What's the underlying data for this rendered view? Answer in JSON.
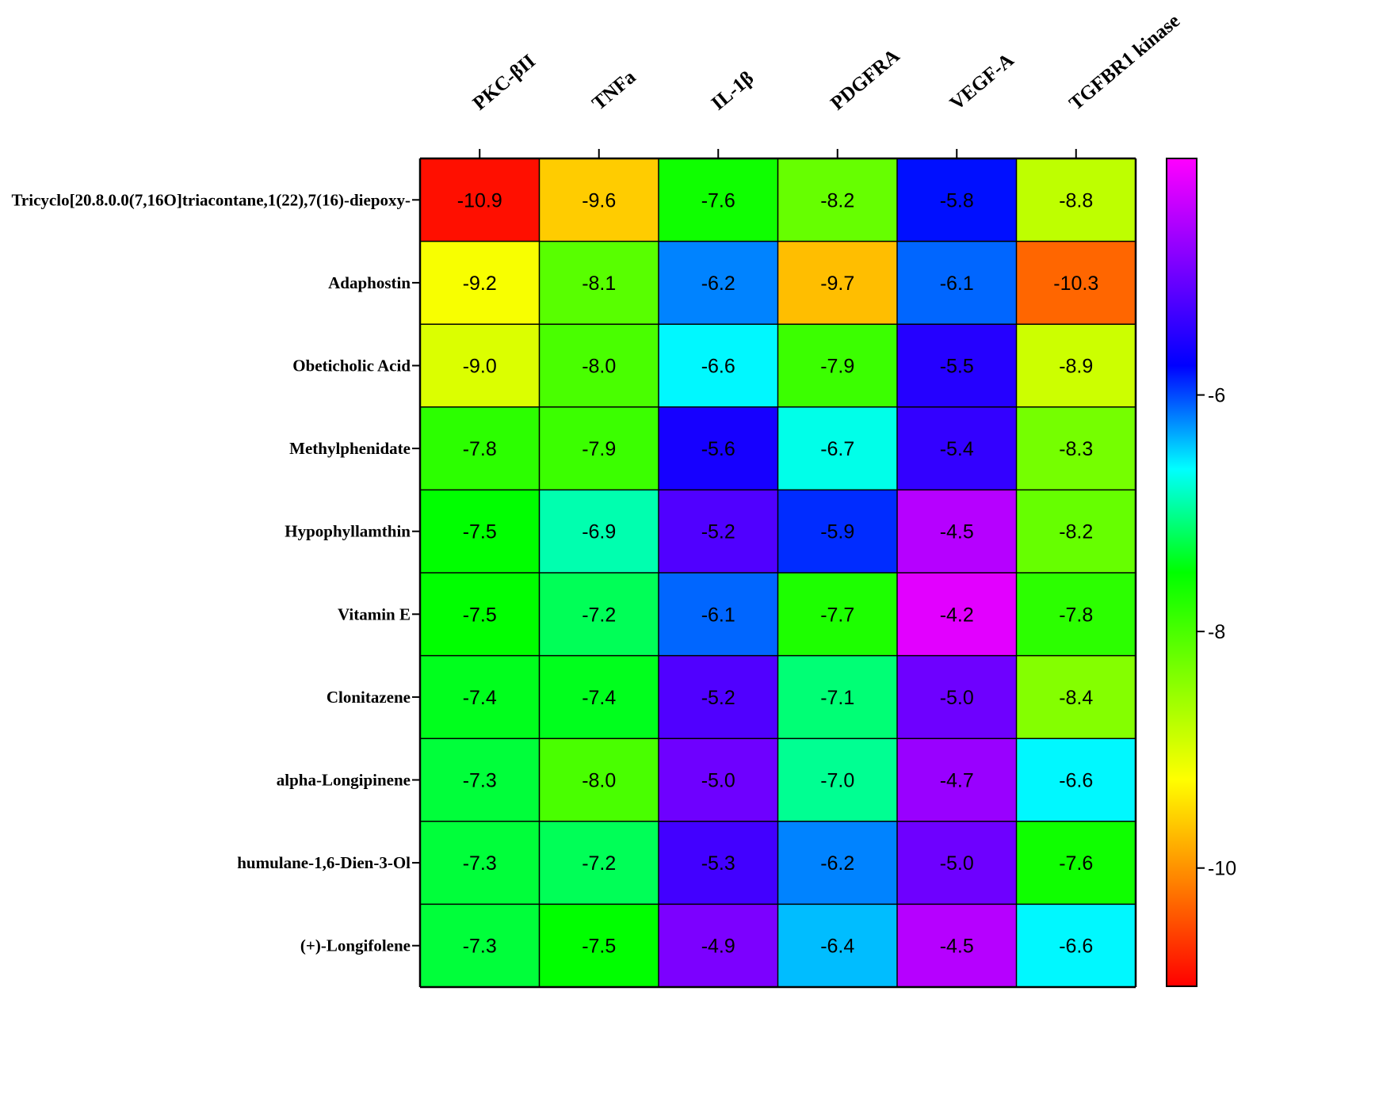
{
  "chart_data": {
    "type": "heatmap",
    "columns": [
      "PKC-βII",
      "TNFa",
      "IL-1β",
      "PDGFRA",
      "VEGF-A",
      "TGFBR1 kinase"
    ],
    "rows": [
      "Tricyclo[20.8.0.0(7,16O]triacontane,1(22),7(16)-diepoxy-",
      "Adaphostin",
      "Obeticholic Acid",
      "Methylphenidate",
      "Hypophyllamthin",
      "Vitamin E",
      "Clonitazene",
      "alpha-Longipinene",
      "humulane-1,6-Dien-3-Ol",
      "(+)-Longifolene"
    ],
    "values": [
      [
        -10.9,
        -9.6,
        -7.6,
        -8.2,
        -5.8,
        -8.8
      ],
      [
        -9.2,
        -8.1,
        -6.2,
        -9.7,
        -6.1,
        -10.3
      ],
      [
        -9.0,
        -8.0,
        -6.6,
        -7.9,
        -5.5,
        -8.9
      ],
      [
        -7.8,
        -7.9,
        -5.6,
        -6.7,
        -5.4,
        -8.3
      ],
      [
        -7.5,
        -6.9,
        -5.2,
        -5.9,
        -4.5,
        -8.2
      ],
      [
        -7.5,
        -7.2,
        -6.1,
        -7.7,
        -4.2,
        -7.8
      ],
      [
        -7.4,
        -7.4,
        -5.2,
        -7.1,
        -5.0,
        -8.4
      ],
      [
        -7.3,
        -8.0,
        -5.0,
        -7.0,
        -4.7,
        -6.6
      ],
      [
        -7.3,
        -7.2,
        -5.3,
        -6.2,
        -5.0,
        -7.6
      ],
      [
        -7.3,
        -7.5,
        -4.9,
        -6.4,
        -4.5,
        -6.6
      ]
    ],
    "colorbar": {
      "ticks": [
        -6,
        -8,
        -10
      ],
      "range": [
        -11,
        -4
      ],
      "colors": [
        "#ff0000",
        "#ff8000",
        "#ffff00",
        "#80ff00",
        "#00ff00",
        "#00ffff",
        "#0000ff",
        "#8000ff",
        "#ff00ff"
      ]
    }
  }
}
